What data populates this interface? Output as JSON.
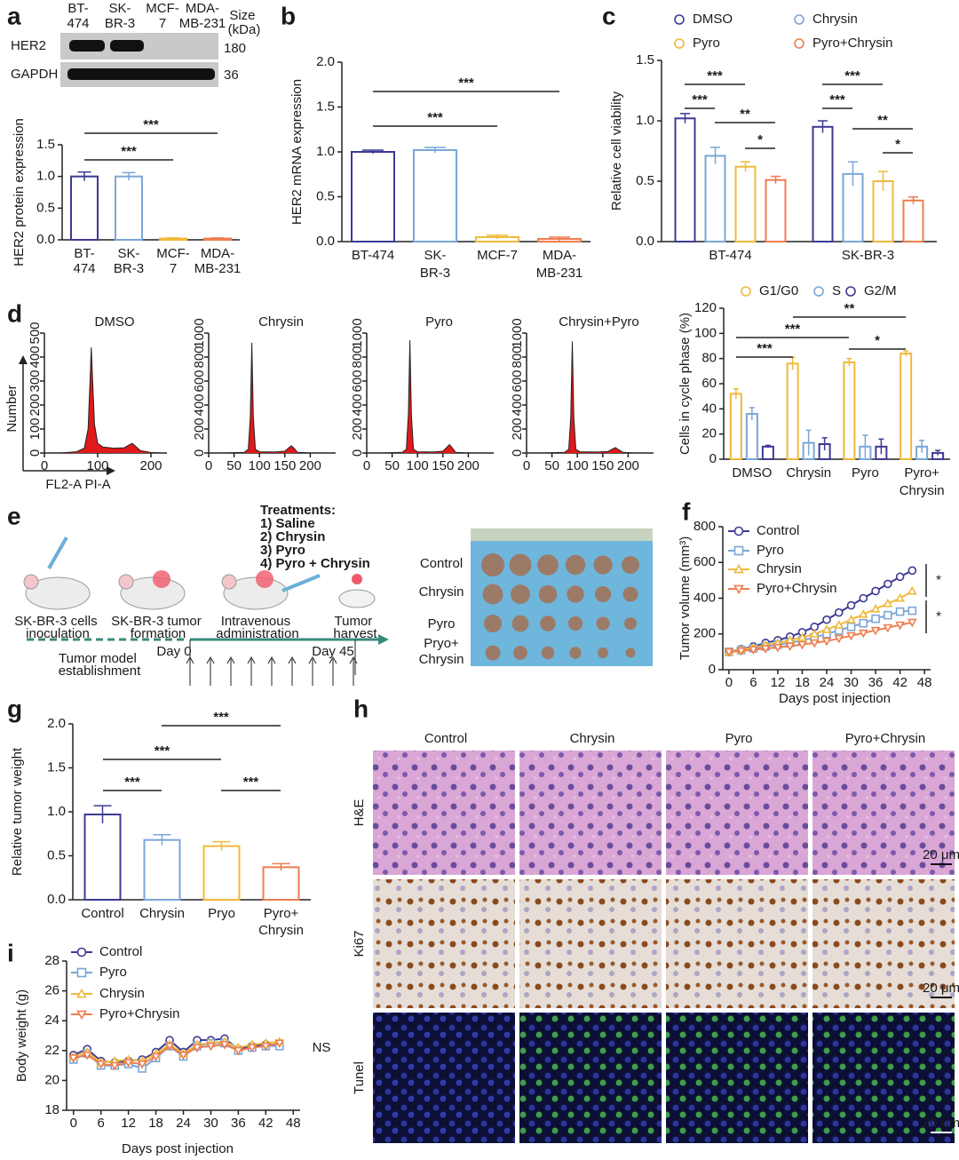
{
  "panel_labels": [
    "a",
    "b",
    "c",
    "d",
    "e",
    "f",
    "g",
    "h",
    "i"
  ],
  "blot": {
    "proteins": [
      "HER2",
      "GAPDH"
    ],
    "sizes": [
      "180",
      "36"
    ],
    "size_header": "Size (kDa)"
  },
  "schematic": {
    "treatments_title": "Treatments:",
    "treatments": [
      "1) Saline",
      "2) Chrysin",
      "3) Pyro",
      "4) Pyro + Chrysin"
    ],
    "steps": [
      "SK-BR-3 cells inoculation",
      "SK-BR-3 tumor formation",
      "Intravenous administration",
      "Tumor harvest"
    ],
    "phase": "Tumor model establishment",
    "days": [
      "Day 0",
      "Day 45"
    ],
    "photo_rows": [
      "Control",
      "Chrysin",
      "Pyro",
      "Pryo+Chrysin"
    ]
  },
  "histology": {
    "columns": [
      "Control",
      "Chrysin",
      "Pyro",
      "Pyro+Chrysin"
    ],
    "rows": [
      "H&E",
      "Ki67",
      "Tunel"
    ],
    "scale_bar": "20 μm"
  },
  "chart_data": [
    {
      "type": "bar",
      "ylabel": "HER2 protein expression",
      "categories": [
        "BT-474",
        "SK-BR-3",
        "MCF-7",
        "MDA-MB-231"
      ],
      "values": [
        1.0,
        1.0,
        0.02,
        0.02
      ],
      "errors": [
        0.07,
        0.06,
        0.01,
        0.01
      ],
      "colors": [
        "#3d3a94",
        "#7aa6d8",
        "#f0b93b",
        "#ef7d4f"
      ],
      "ylim": [
        0,
        1.5
      ],
      "yticks": [
        {
          "value": 0,
          "label": "0.0"
        },
        {
          "value": 0.5,
          "label": "0.5"
        },
        {
          "value": 1,
          "label": "1.0"
        },
        {
          "value": 1.5,
          "label": "1.5"
        }
      ],
      "annotations": [
        "***",
        "***"
      ]
    },
    {
      "type": "bar",
      "ylabel": "HER2 mRNA expression",
      "categories": [
        "BT-474",
        "SK-BR-3",
        "MCF-7",
        "MDA-MB-231"
      ],
      "values": [
        1.0,
        1.02,
        0.05,
        0.03
      ],
      "errors": [
        0.02,
        0.03,
        0.02,
        0.02
      ],
      "colors": [
        "#3d3a94",
        "#7aa6d8",
        "#f0b93b",
        "#ef7d4f"
      ],
      "ylim": [
        0,
        2
      ],
      "yticks": [
        {
          "value": 0,
          "label": "0.0"
        },
        {
          "value": 0.5,
          "label": "0.5"
        },
        {
          "value": 1,
          "label": "1.0"
        },
        {
          "value": 1.5,
          "label": "1.5"
        },
        {
          "value": 2,
          "label": "2.0"
        }
      ],
      "annotations": [
        "***",
        "***"
      ]
    },
    {
      "type": "bar",
      "ylabel": "Relative cell viability",
      "categories": [
        "BT-474",
        "SK-BR-3"
      ],
      "series": [
        {
          "name": "DMSO",
          "color": "#3d3a94",
          "values": [
            1.02,
            0.95
          ],
          "errors": [
            0.04,
            0.05
          ]
        },
        {
          "name": "Chrysin",
          "color": "#7aa6d8",
          "values": [
            0.71,
            0.56
          ],
          "errors": [
            0.07,
            0.1
          ]
        },
        {
          "name": "Pyro",
          "color": "#f0b93b",
          "values": [
            0.62,
            0.5
          ],
          "errors": [
            0.04,
            0.08
          ]
        },
        {
          "name": "Pyro+Chrysin",
          "color": "#ef7d4f",
          "values": [
            0.51,
            0.34
          ],
          "errors": [
            0.03,
            0.03
          ]
        }
      ],
      "ylim": [
        0,
        1.5
      ],
      "yticks": [
        {
          "value": 0,
          "label": "0.0"
        },
        {
          "value": 0.5,
          "label": "0.5"
        },
        {
          "value": 1,
          "label": "1.0"
        },
        {
          "value": 1.5,
          "label": "1.5"
        }
      ],
      "legend": "top",
      "annotations": [
        "***",
        "***",
        "**",
        "*",
        "***",
        "***",
        "**",
        "*"
      ]
    },
    {
      "type": "area",
      "title": "DMSO",
      "ylabel": "Number",
      "xlabel": "FL2-A PI-A",
      "color": "#e0191b",
      "x": [
        30,
        60,
        75,
        82,
        86,
        88,
        90,
        94,
        100,
        110,
        130,
        150,
        160,
        165,
        170,
        180,
        200,
        220
      ],
      "values": [
        0,
        5,
        20,
        100,
        320,
        440,
        330,
        120,
        40,
        25,
        20,
        22,
        35,
        40,
        30,
        10,
        2,
        0
      ],
      "xlim": [
        0,
        230
      ],
      "xticks": [
        0,
        100,
        200
      ],
      "ylim": [
        0,
        500
      ],
      "yticks": [
        0,
        100,
        200,
        300,
        400,
        500
      ]
    },
    {
      "type": "area",
      "title": "Chrysin",
      "color": "#e0191b",
      "x": [
        30,
        70,
        78,
        82,
        85,
        88,
        92,
        100,
        130,
        150,
        158,
        163,
        168,
        175,
        200
      ],
      "values": [
        0,
        5,
        30,
        300,
        920,
        300,
        30,
        10,
        8,
        15,
        45,
        60,
        40,
        5,
        0
      ],
      "xlim": [
        0,
        250
      ],
      "xticks": [
        0,
        50,
        100,
        150,
        200
      ],
      "ylim": [
        0,
        1000
      ],
      "yticks": [
        0,
        200,
        400,
        600,
        800,
        1000
      ]
    },
    {
      "type": "area",
      "title": "Pyro",
      "color": "#e0191b",
      "x": [
        30,
        70,
        78,
        82,
        85,
        88,
        92,
        100,
        130,
        150,
        158,
        163,
        168,
        175,
        200
      ],
      "values": [
        0,
        5,
        30,
        320,
        940,
        320,
        30,
        10,
        8,
        15,
        50,
        70,
        45,
        5,
        0
      ],
      "xlim": [
        0,
        250
      ],
      "xticks": [
        0,
        50,
        100,
        150,
        200
      ],
      "ylim": [
        0,
        1000
      ],
      "yticks": [
        0,
        200,
        400,
        600,
        800,
        1000
      ]
    },
    {
      "type": "area",
      "title": "Chrysin+Pyro",
      "color": "#e0191b",
      "x": [
        30,
        75,
        83,
        87,
        90,
        93,
        97,
        105,
        140,
        160,
        170,
        175,
        180,
        190,
        210
      ],
      "values": [
        0,
        5,
        30,
        300,
        930,
        300,
        30,
        10,
        8,
        12,
        35,
        45,
        30,
        5,
        0
      ],
      "xlim": [
        0,
        250
      ],
      "xticks": [
        0,
        50,
        100,
        150,
        200
      ],
      "ylim": [
        0,
        1000
      ],
      "yticks": [
        0,
        200,
        400,
        600,
        800,
        1000
      ]
    },
    {
      "type": "bar",
      "ylabel": "Cells in cycle phase (%)",
      "categories": [
        "DMSO",
        "Chrysin",
        "Pyro",
        "Pyro+Chrysin"
      ],
      "series": [
        {
          "name": "G1/G0",
          "color": "#f0b93b",
          "values": [
            52,
            76,
            77,
            84
          ],
          "errors": [
            4,
            5,
            3,
            2
          ]
        },
        {
          "name": "S",
          "color": "#7aa6d8",
          "values": [
            36,
            13,
            10,
            10
          ],
          "errors": [
            5,
            10,
            9,
            5
          ]
        },
        {
          "name": "G2/M",
          "color": "#3d3a94",
          "values": [
            10,
            12,
            10,
            5
          ],
          "errors": [
            1,
            5,
            6,
            2
          ]
        }
      ],
      "ylim": [
        0,
        120
      ],
      "yticks": [
        0,
        20,
        40,
        60,
        80,
        100,
        120
      ],
      "legend": "top",
      "annotations": [
        "***",
        "***",
        "**",
        "*"
      ]
    },
    {
      "type": "line",
      "ylabel": "Tumor volume (mm³)",
      "xlabel": "Days post injection",
      "x": [
        0,
        3,
        6,
        9,
        12,
        15,
        18,
        21,
        24,
        27,
        30,
        33,
        36,
        39,
        42,
        45
      ],
      "series": [
        {
          "name": "Control",
          "color": "#3d3a94",
          "values": [
            100,
            115,
            130,
            150,
            165,
            185,
            210,
            240,
            280,
            320,
            360,
            400,
            440,
            480,
            520,
            555
          ]
        },
        {
          "name": "Pyro",
          "color": "#7aa6d8",
          "values": [
            100,
            110,
            120,
            130,
            140,
            150,
            165,
            180,
            200,
            220,
            240,
            260,
            285,
            305,
            325,
            330
          ]
        },
        {
          "name": "Chrysin",
          "color": "#f0b93b",
          "values": [
            100,
            112,
            125,
            138,
            150,
            165,
            180,
            200,
            225,
            250,
            280,
            310,
            340,
            370,
            400,
            440
          ]
        },
        {
          "name": "Pyro+Chrysin",
          "color": "#ef7d4f",
          "values": [
            100,
            105,
            112,
            118,
            125,
            132,
            140,
            150,
            160,
            175,
            190,
            205,
            220,
            235,
            250,
            265
          ]
        }
      ],
      "xlim": [
        -1.5,
        49.5
      ],
      "xticks": [
        0,
        6,
        12,
        18,
        24,
        30,
        36,
        42,
        48
      ],
      "ylim": [
        0,
        800
      ],
      "yticks": [
        0,
        200,
        400,
        600,
        800
      ],
      "legend": "upper left",
      "annotations": [
        "*",
        "*"
      ]
    },
    {
      "type": "bar",
      "ylabel": "Relative tumor weight",
      "categories": [
        "Control",
        "Chrysin",
        "Pryo",
        "Pyro+Chrysin"
      ],
      "values": [
        0.97,
        0.68,
        0.61,
        0.37
      ],
      "errors": [
        0.1,
        0.06,
        0.05,
        0.04
      ],
      "colors": [
        "#3d3a94",
        "#7aa6d8",
        "#f0b93b",
        "#ef7d4f"
      ],
      "ylim": [
        0,
        2
      ],
      "yticks": [
        {
          "value": 0,
          "label": "0.0"
        },
        {
          "value": 0.5,
          "label": "0.5"
        },
        {
          "value": 1,
          "label": "1.0"
        },
        {
          "value": 1.5,
          "label": "1.5"
        },
        {
          "value": 2,
          "label": "2.0"
        }
      ],
      "annotations": [
        "***",
        "***",
        "***",
        "***"
      ]
    },
    {
      "type": "line",
      "ylabel": "Body weight (g)",
      "xlabel": "Days post injection",
      "x": [
        0,
        3,
        6,
        9,
        12,
        15,
        18,
        21,
        24,
        27,
        30,
        33,
        36,
        39,
        42,
        45
      ],
      "series": [
        {
          "name": "Control",
          "color": "#3d3a94",
          "values": [
            21.7,
            22.1,
            21.3,
            21.2,
            21.3,
            21.4,
            21.9,
            22.7,
            21.9,
            22.7,
            22.7,
            22.8,
            22.1,
            22.3,
            22.4,
            22.4
          ]
        },
        {
          "name": "Pyro",
          "color": "#7aa6d8",
          "values": [
            21.4,
            21.8,
            21.0,
            21.0,
            21.1,
            20.8,
            21.5,
            22.3,
            21.6,
            22.3,
            22.5,
            22.5,
            22.0,
            22.2,
            22.3,
            22.3
          ]
        },
        {
          "name": "Chrysin",
          "color": "#f0b93b",
          "values": [
            21.6,
            21.9,
            21.2,
            21.3,
            21.4,
            21.3,
            21.8,
            22.4,
            21.8,
            22.4,
            22.5,
            22.6,
            22.2,
            22.4,
            22.5,
            22.6
          ]
        },
        {
          "name": "Pyro+Chrysin",
          "color": "#ef7d4f",
          "values": [
            21.5,
            21.7,
            21.1,
            21.0,
            21.2,
            21.1,
            21.6,
            22.3,
            21.7,
            22.2,
            22.3,
            22.4,
            22.0,
            22.2,
            22.3,
            22.5
          ]
        }
      ],
      "xlim": [
        -1.5,
        49.5
      ],
      "xticks": [
        0,
        6,
        12,
        18,
        24,
        30,
        36,
        42,
        48
      ],
      "ylim": [
        18,
        28
      ],
      "yticks": [
        18,
        20,
        22,
        24,
        26,
        28
      ],
      "legend": "upper left",
      "annotations": [
        "NS"
      ]
    }
  ]
}
